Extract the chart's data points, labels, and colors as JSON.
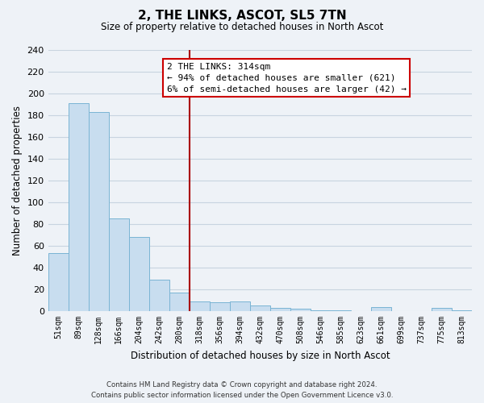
{
  "title": "2, THE LINKS, ASCOT, SL5 7TN",
  "subtitle": "Size of property relative to detached houses in North Ascot",
  "xlabel": "Distribution of detached houses by size in North Ascot",
  "ylabel": "Number of detached properties",
  "bar_labels": [
    "51sqm",
    "89sqm",
    "128sqm",
    "166sqm",
    "204sqm",
    "242sqm",
    "280sqm",
    "318sqm",
    "356sqm",
    "394sqm",
    "432sqm",
    "470sqm",
    "508sqm",
    "546sqm",
    "585sqm",
    "623sqm",
    "661sqm",
    "699sqm",
    "737sqm",
    "775sqm",
    "813sqm"
  ],
  "bar_heights": [
    53,
    191,
    183,
    85,
    68,
    29,
    17,
    9,
    8,
    9,
    5,
    3,
    2,
    1,
    1,
    0,
    4,
    0,
    0,
    3,
    1
  ],
  "bar_color": "#c8ddef",
  "bar_edge_color": "#7ab4d4",
  "vline_x_index": 7,
  "vline_color": "#aa0000",
  "annotation_line1": "2 THE LINKS: 314sqm",
  "annotation_line2": "← 94% of detached houses are smaller (621)",
  "annotation_line3": "6% of semi-detached houses are larger (42) →",
  "annotation_box_facecolor": "#ffffff",
  "annotation_box_edgecolor": "#cc0000",
  "ylim": [
    0,
    240
  ],
  "yticks": [
    0,
    20,
    40,
    60,
    80,
    100,
    120,
    140,
    160,
    180,
    200,
    220,
    240
  ],
  "footer_line1": "Contains HM Land Registry data © Crown copyright and database right 2024.",
  "footer_line2": "Contains public sector information licensed under the Open Government Licence v3.0.",
  "background_color": "#eef2f7",
  "plot_background_color": "#eef2f7",
  "grid_color": "#c8d4e0"
}
